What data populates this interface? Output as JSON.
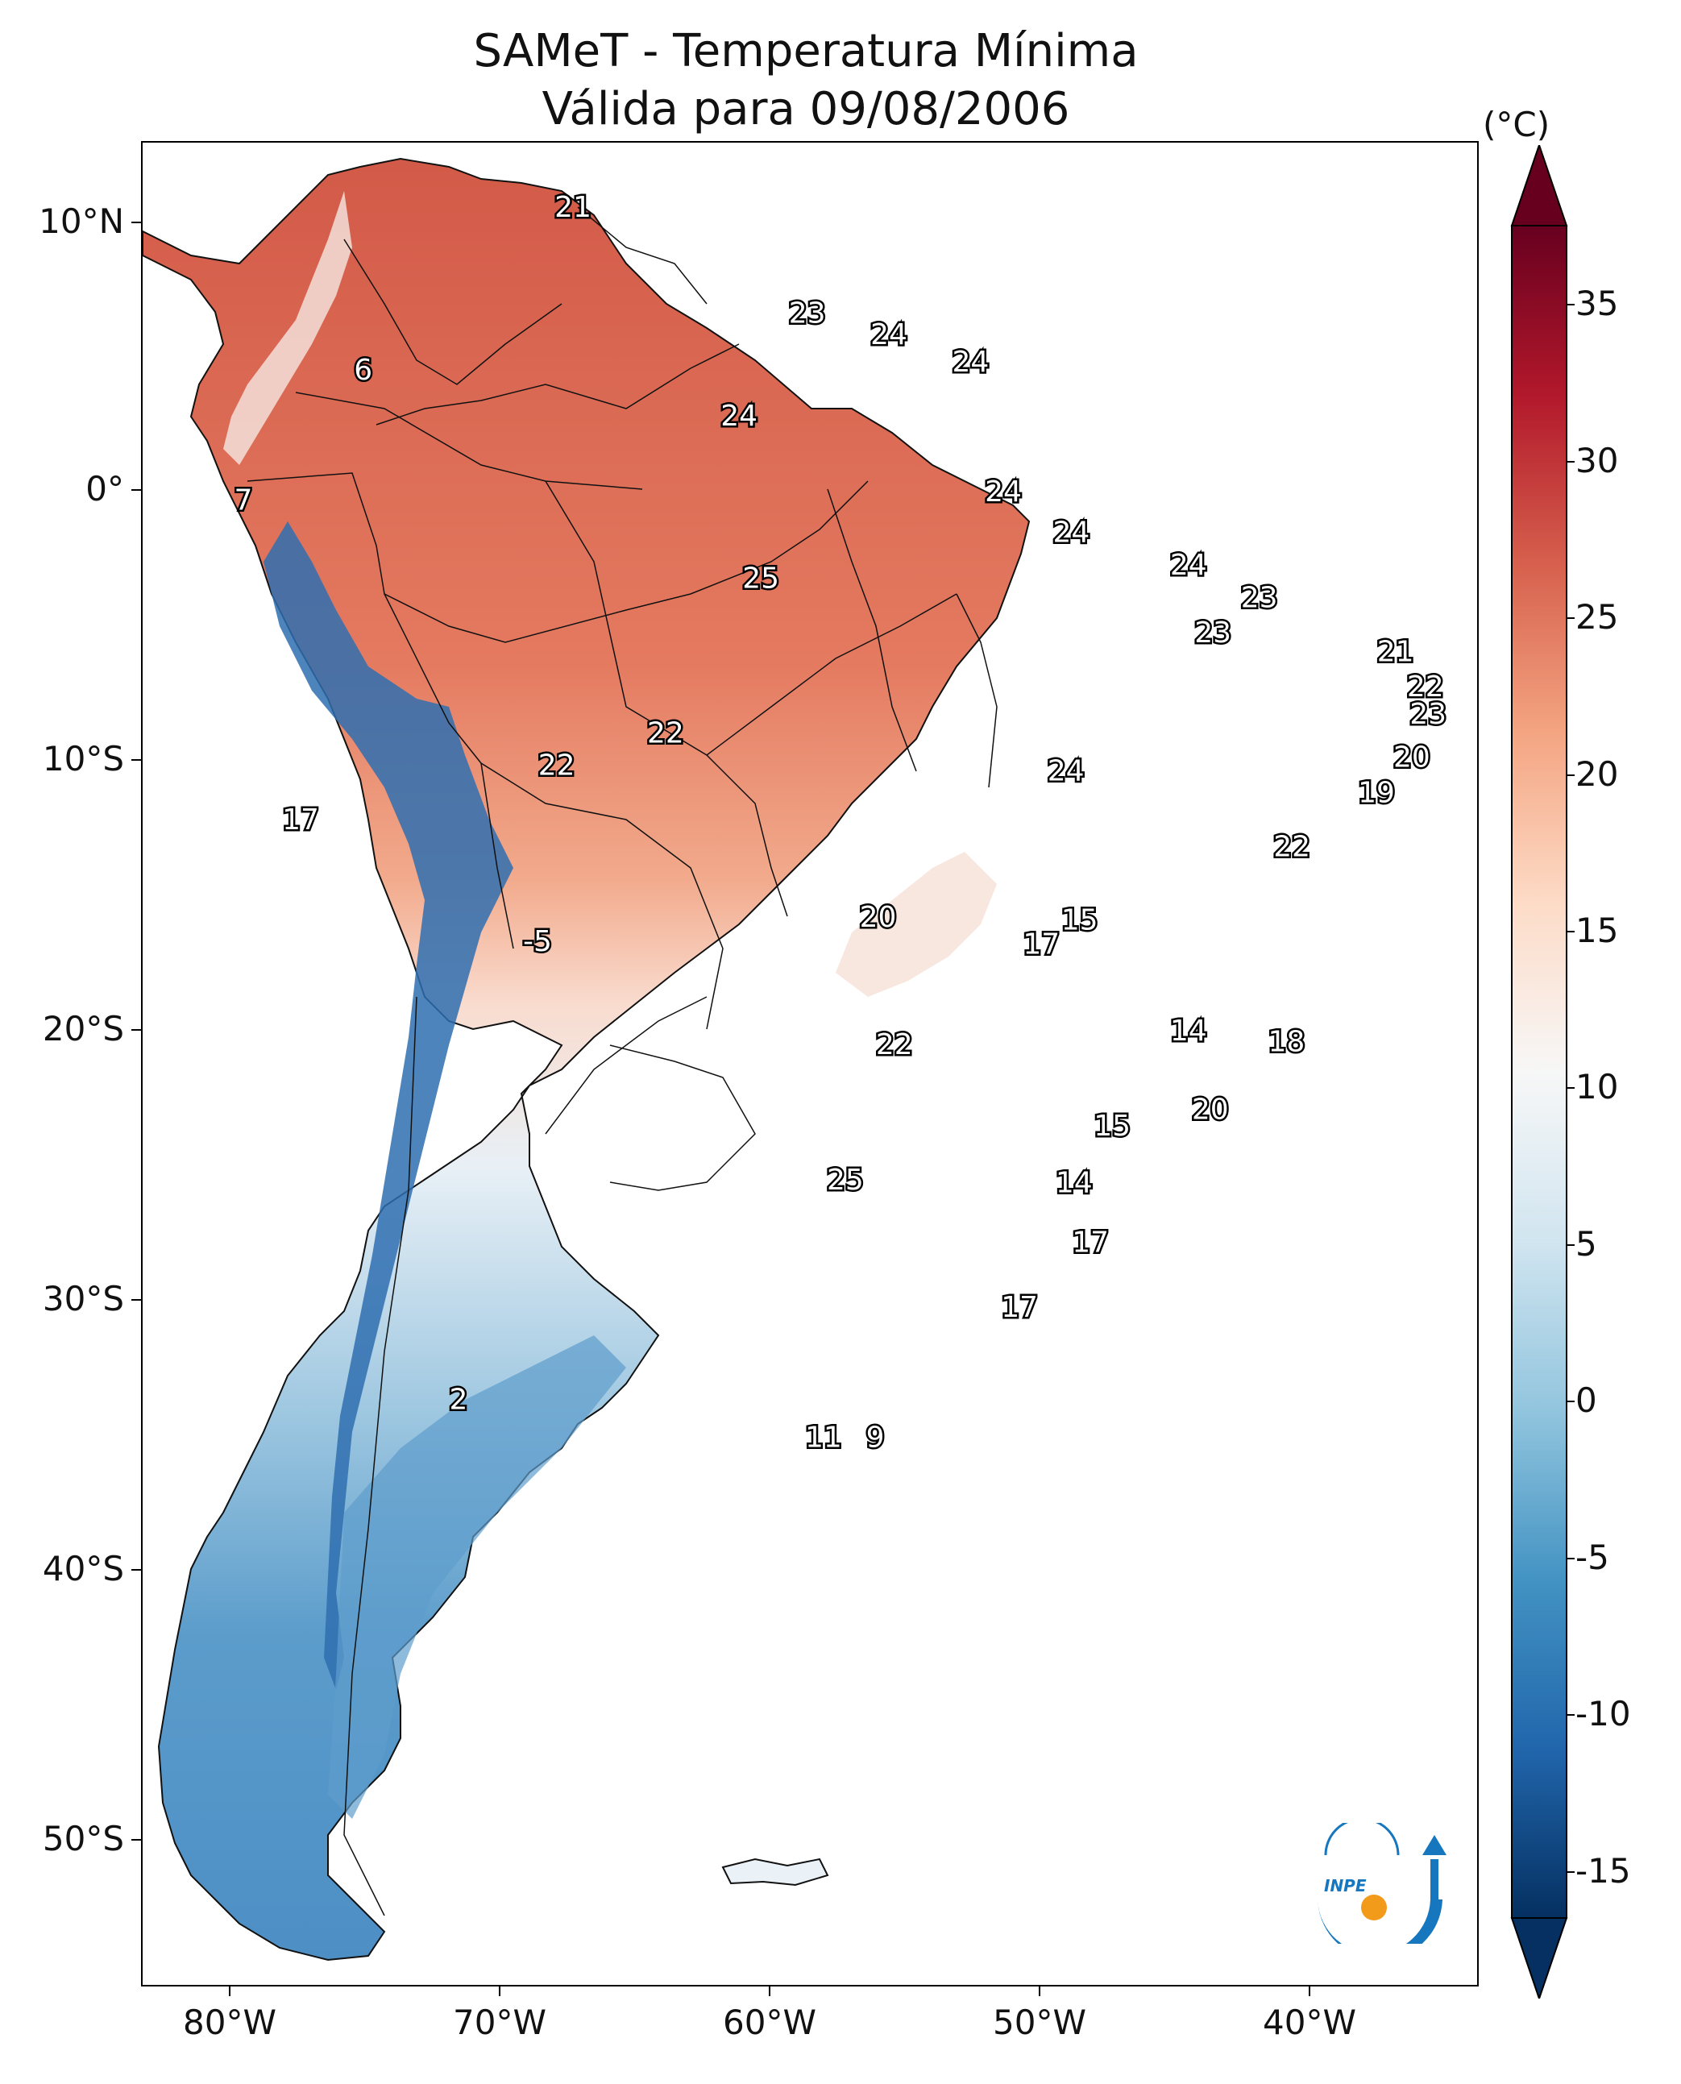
{
  "title": {
    "line1": "SAMeT - Temperatura Mínima",
    "line2": "Válida para 09/08/2006"
  },
  "map": {
    "lat_labels": [
      "10°N",
      "0°",
      "10°S",
      "20°S",
      "30°S",
      "40°S",
      "50°S"
    ],
    "lon_labels": [
      "80°W",
      "70°W",
      "60°W",
      "50°W",
      "40°W"
    ],
    "point_labels": [
      {
        "text": "21",
        "lon": -67.2,
        "lat": 10.6
      },
      {
        "text": "6",
        "lon": -74.9,
        "lat": 4.6
      },
      {
        "text": "7",
        "lon": -79.3,
        "lat": -0.2
      },
      {
        "text": "23",
        "lon": -58.6,
        "lat": 6.7
      },
      {
        "text": "24",
        "lon": -55.6,
        "lat": 5.9
      },
      {
        "text": "24",
        "lon": -52.6,
        "lat": 4.9
      },
      {
        "text": "24",
        "lon": -61.1,
        "lat": 2.9
      },
      {
        "text": "24",
        "lon": -51.4,
        "lat": 0.1
      },
      {
        "text": "24",
        "lon": -48.9,
        "lat": -1.4
      },
      {
        "text": "25",
        "lon": -60.3,
        "lat": -3.1
      },
      {
        "text": "24",
        "lon": -44.6,
        "lat": -2.6
      },
      {
        "text": "23",
        "lon": -42.0,
        "lat": -3.8
      },
      {
        "text": "23",
        "lon": -43.7,
        "lat": -5.1
      },
      {
        "text": "21",
        "lon": -37.0,
        "lat": -5.8
      },
      {
        "text": "22",
        "lon": -35.9,
        "lat": -7.1
      },
      {
        "text": "23",
        "lon": -35.8,
        "lat": -8.1
      },
      {
        "text": "22",
        "lon": -63.8,
        "lat": -8.8
      },
      {
        "text": "22",
        "lon": -67.8,
        "lat": -10.0
      },
      {
        "text": "20",
        "lon": -36.4,
        "lat": -9.7
      },
      {
        "text": "24",
        "lon": -49.1,
        "lat": -10.2
      },
      {
        "text": "19",
        "lon": -37.7,
        "lat": -11.0
      },
      {
        "text": "17",
        "lon": -77.2,
        "lat": -12.0
      },
      {
        "text": "22",
        "lon": -40.8,
        "lat": -13.0
      },
      {
        "text": "20",
        "lon": -56.0,
        "lat": -15.6
      },
      {
        "text": "15",
        "lon": -48.6,
        "lat": -15.7
      },
      {
        "text": "-5",
        "lon": -68.5,
        "lat": -16.5
      },
      {
        "text": "17",
        "lon": -50.0,
        "lat": -16.6
      },
      {
        "text": "14",
        "lon": -44.6,
        "lat": -19.8
      },
      {
        "text": "18",
        "lon": -41.0,
        "lat": -20.2
      },
      {
        "text": "22",
        "lon": -55.4,
        "lat": -20.3
      },
      {
        "text": "20",
        "lon": -43.8,
        "lat": -22.7
      },
      {
        "text": "15",
        "lon": -47.4,
        "lat": -23.3
      },
      {
        "text": "25",
        "lon": -57.2,
        "lat": -25.3
      },
      {
        "text": "14",
        "lon": -48.8,
        "lat": -25.4
      },
      {
        "text": "17",
        "lon": -48.2,
        "lat": -27.6
      },
      {
        "text": "17",
        "lon": -50.8,
        "lat": -30.0
      },
      {
        "text": "2",
        "lon": -71.4,
        "lat": -33.4
      },
      {
        "text": "11",
        "lon": -58.0,
        "lat": -34.8
      },
      {
        "text": "9",
        "lon": -56.1,
        "lat": -34.8
      }
    ]
  },
  "colorbar": {
    "unit": "(°C)",
    "tick_labels": [
      "35",
      "30",
      "25",
      "20",
      "15",
      "10",
      "5",
      "0",
      "-5",
      "-10",
      "-15"
    ],
    "range": [
      -15,
      35
    ],
    "extend": "both",
    "colors": [
      "#053061",
      "#2166ac",
      "#4393c3",
      "#92c5de",
      "#d1e5f0",
      "#f7f7f7",
      "#fddbc7",
      "#f4a582",
      "#d6604d",
      "#b2182b",
      "#67001f"
    ]
  },
  "logo": {
    "text": "INPE"
  }
}
